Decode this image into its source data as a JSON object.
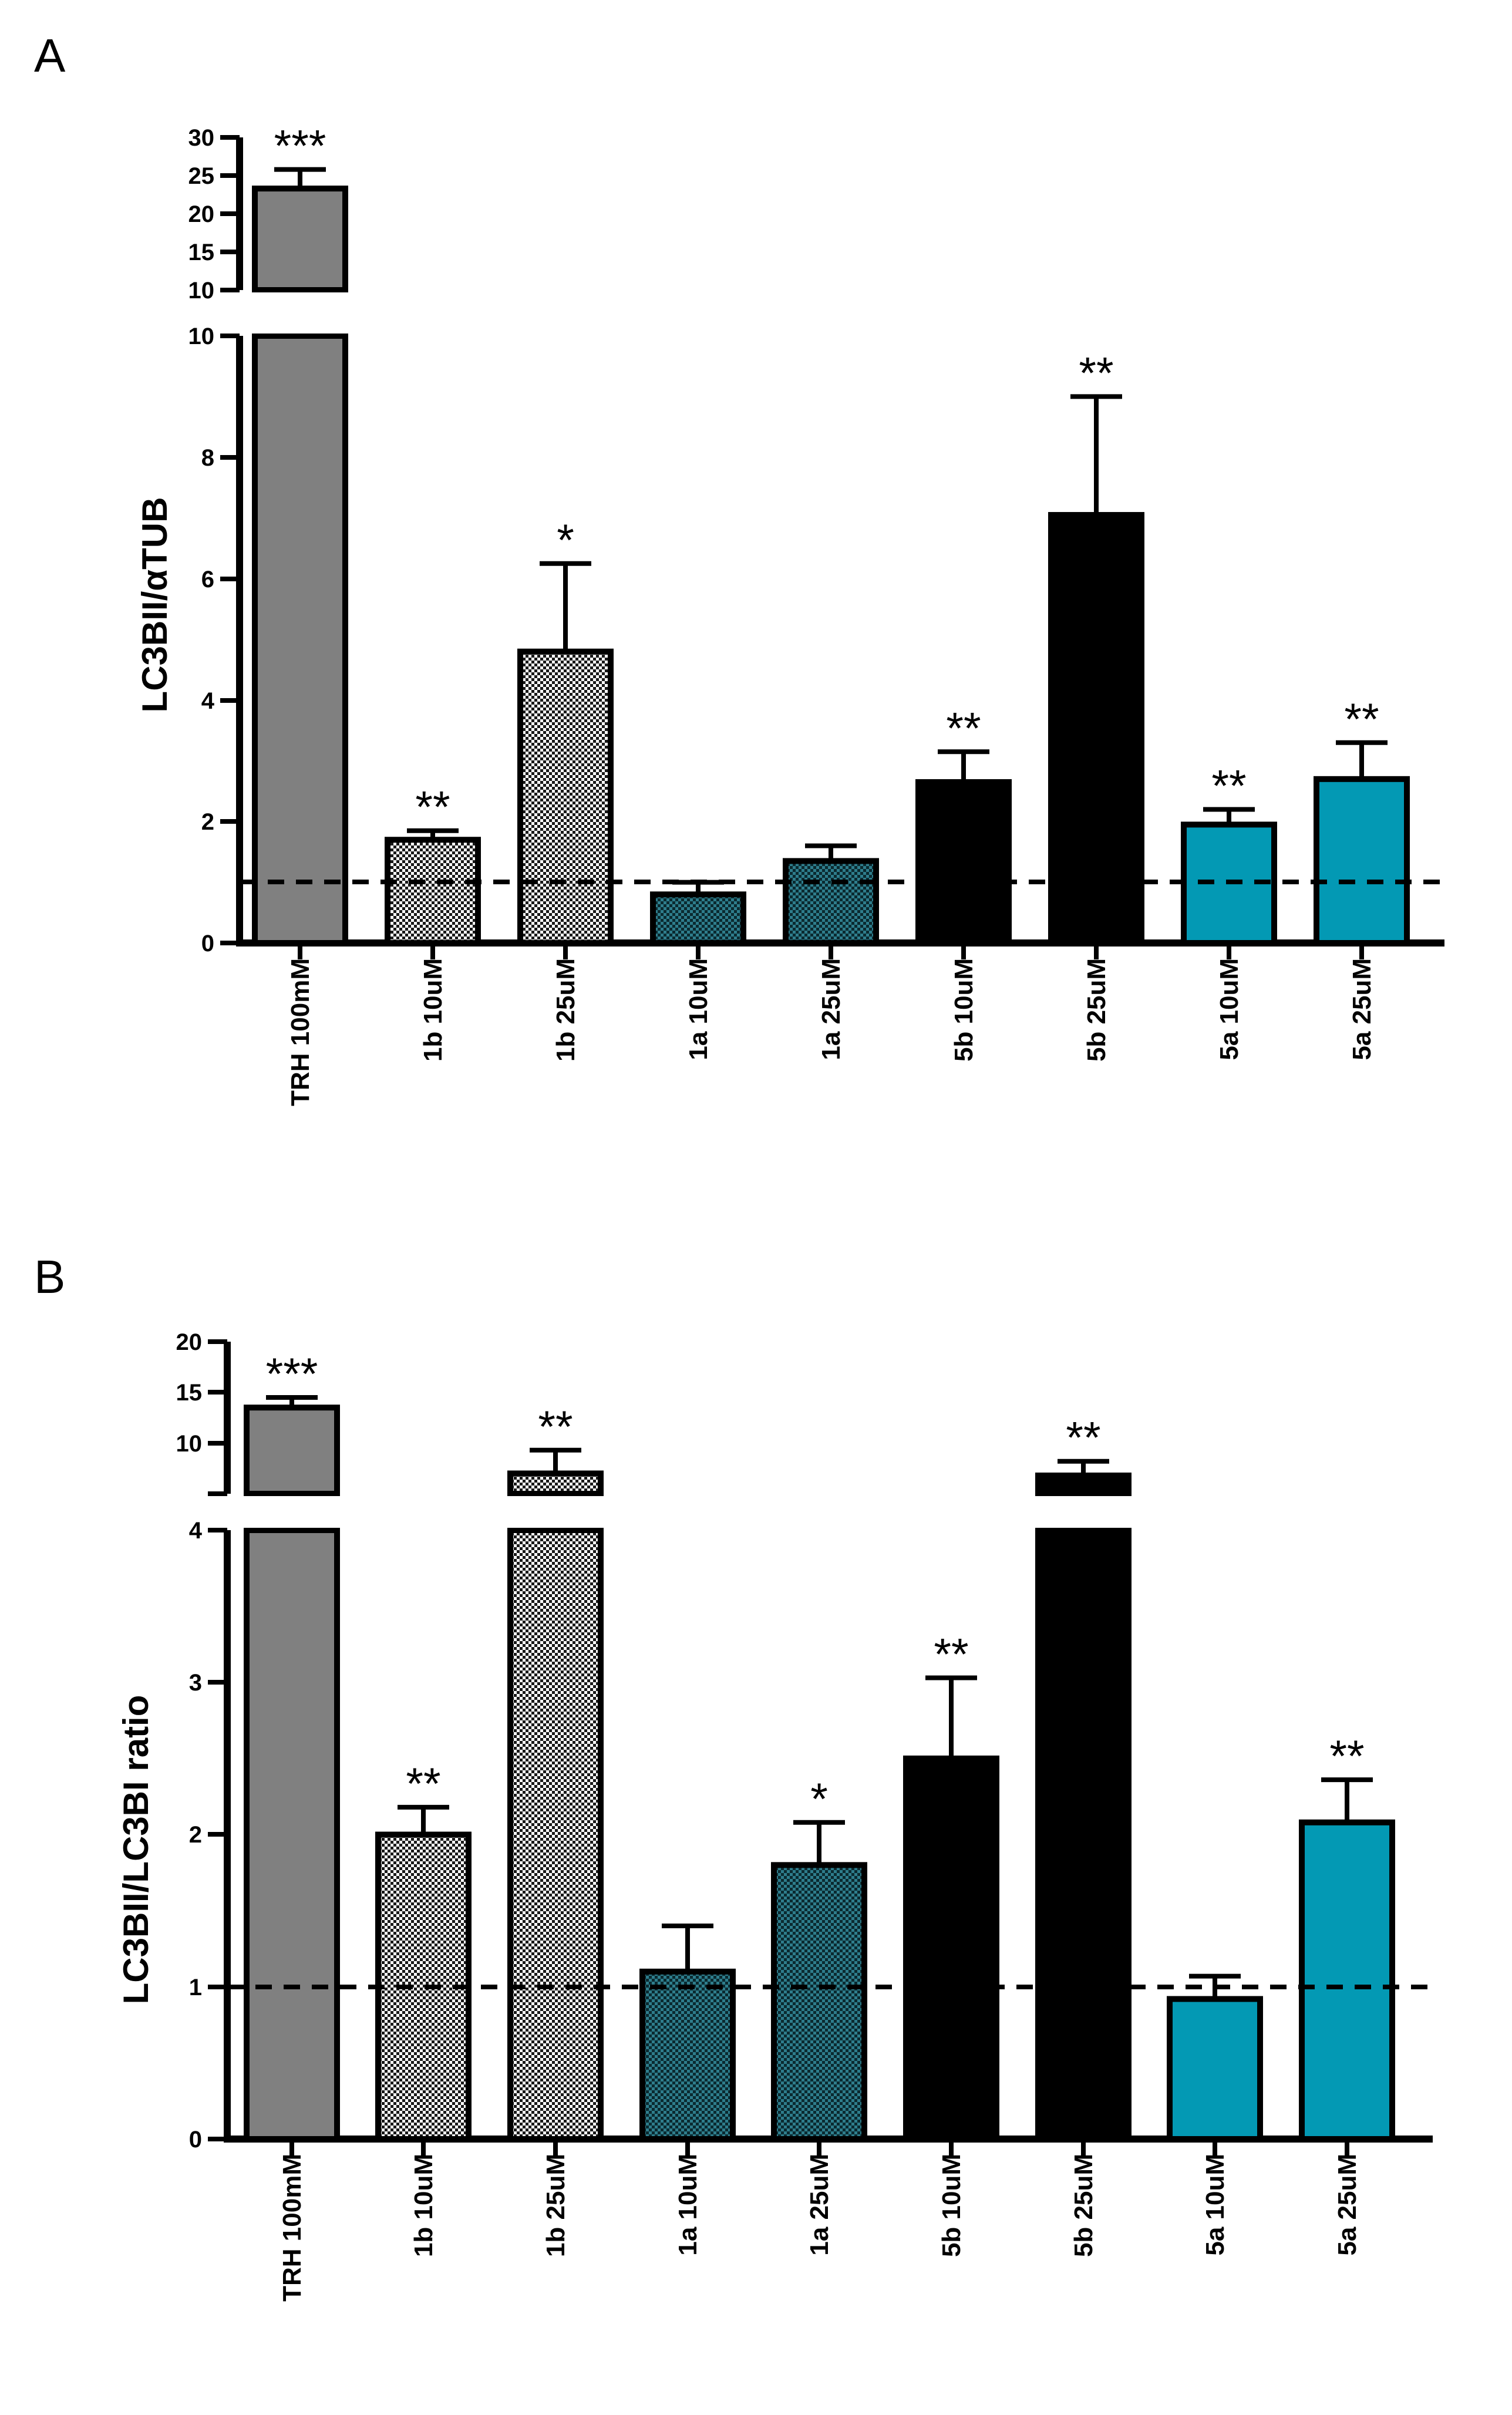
{
  "colors": {
    "trh": "#808080",
    "compound_1b": "#e0e0e0",
    "compound_1a": "#2e7d8c",
    "compound_5b": "#000000",
    "compound_5a": "#0399b4",
    "outline": "#000000"
  },
  "chart_data": [
    {
      "panel_label": "A",
      "type": "bar",
      "ylabel": "LC3BII/αTUB",
      "categories": [
        "TRH 100mM",
        "1b 10uM",
        "1b 25uM",
        "1a 10uM",
        "1a 25uM",
        "5b 10uM",
        "5b 25uM",
        "5a 10uM",
        "5a 25uM"
      ],
      "values": [
        23.3,
        1.7,
        4.8,
        0.8,
        1.35,
        2.65,
        7.05,
        1.95,
        2.7
      ],
      "errors": [
        2.5,
        0.15,
        1.45,
        0.2,
        0.25,
        0.5,
        1.95,
        0.25,
        0.6
      ],
      "significance": [
        "***",
        "**",
        "*",
        "",
        "",
        "**",
        "**",
        "**",
        "**"
      ],
      "fills": [
        "trh",
        "compound_1b",
        "compound_1b",
        "compound_1a",
        "compound_1a",
        "compound_5b",
        "compound_5b",
        "compound_5a",
        "compound_5a"
      ],
      "patterns": [
        "solid",
        "checker",
        "checker",
        "checker",
        "checker",
        "solid",
        "solid",
        "solid",
        "solid"
      ],
      "reference_line": 1,
      "axis_break": {
        "lower_ylim": [
          0,
          10
        ],
        "lower_ticks": [
          "0",
          "2",
          "4",
          "6",
          "8",
          "10"
        ],
        "upper_ylim": [
          10,
          30
        ],
        "upper_ticks": [
          "10",
          "15",
          "20",
          "25",
          "30"
        ]
      }
    },
    {
      "panel_label": "B",
      "type": "bar",
      "ylabel": "LC3BII/LC3BI ratio",
      "categories": [
        "TRH 100mM",
        "1b 10uM",
        "1b 25uM",
        "1a 10uM",
        "1a 25uM",
        "5b 10uM",
        "5b 25uM",
        "5a 10uM",
        "5a 25uM"
      ],
      "values": [
        13.5,
        2.0,
        7.0,
        1.1,
        1.8,
        2.5,
        6.8,
        0.92,
        2.08
      ],
      "errors": [
        1.0,
        0.18,
        2.3,
        0.3,
        0.28,
        0.53,
        1.4,
        0.15,
        0.28
      ],
      "significance": [
        "***",
        "**",
        "**",
        "",
        "*",
        "**",
        "**",
        "",
        "**"
      ],
      "fills": [
        "trh",
        "compound_1b",
        "compound_1b",
        "compound_1a",
        "compound_1a",
        "compound_5b",
        "compound_5b",
        "compound_5a",
        "compound_5a"
      ],
      "patterns": [
        "solid",
        "checker",
        "checker",
        "checker",
        "checker",
        "solid",
        "solid",
        "solid",
        "solid"
      ],
      "reference_line": 1,
      "axis_break": {
        "lower_ylim": [
          0,
          4
        ],
        "lower_ticks": [
          "0",
          "1",
          "2",
          "3",
          "4"
        ],
        "upper_ylim": [
          5,
          20
        ],
        "upper_ticks": [
          "10",
          "15",
          "20"
        ]
      }
    }
  ]
}
